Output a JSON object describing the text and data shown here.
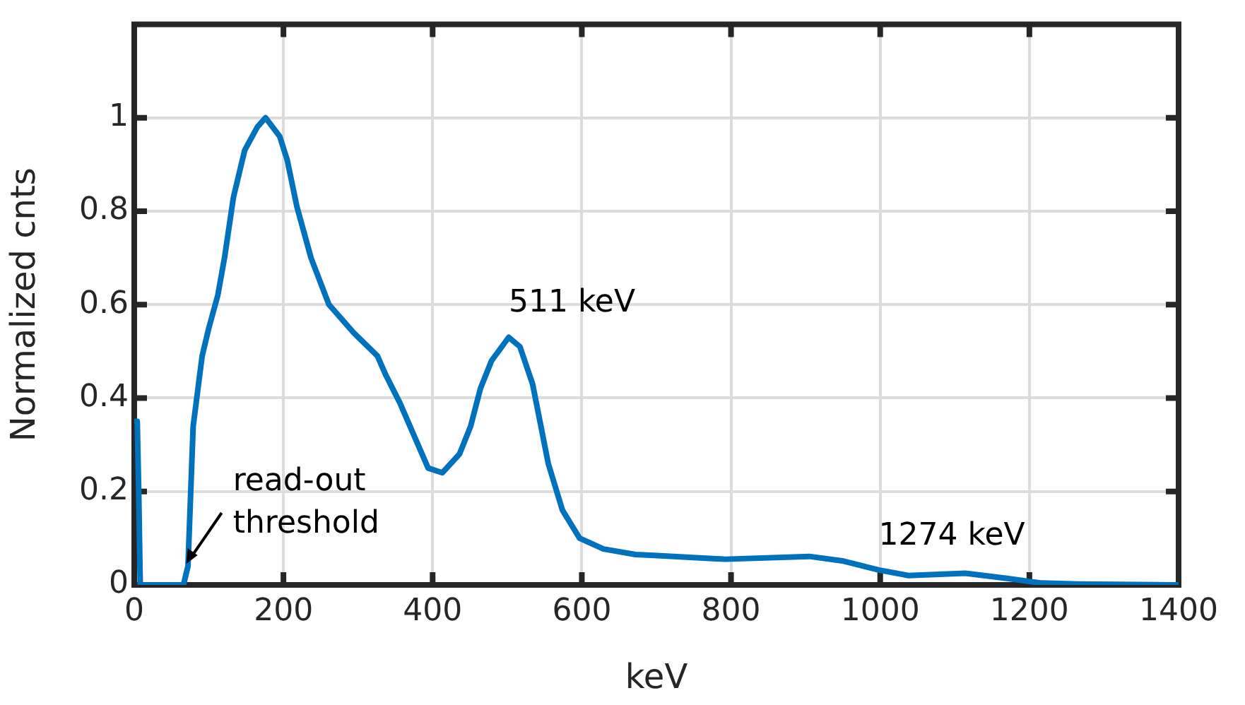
{
  "chart_data": {
    "type": "line",
    "xlabel": "keV",
    "ylabel": "Normalized cnts",
    "xlim": [
      0,
      1400
    ],
    "xticks": [
      0,
      200,
      400,
      600,
      800,
      1000,
      1200,
      1400
    ],
    "ylim": [
      0,
      1.2
    ],
    "yticks": [
      0,
      0.2,
      0.4,
      0.6,
      0.8,
      1
    ],
    "grid": true,
    "legend": false,
    "marker": "none",
    "line_style": "solid",
    "annotations": [
      {
        "text": "511 keV",
        "x": 502,
        "y": 0.53
      },
      {
        "text": "1274 keV",
        "x": 998,
        "y": 0.032
      },
      {
        "text": "read-out threshold",
        "x": 66,
        "y": 0
      }
    ],
    "series": [
      {
        "color": "#0072bd",
        "x": [
          2,
          4,
          6,
          8,
          30,
          66,
          72,
          79,
          91,
          100,
          112,
          121,
          133,
          148,
          165,
          176,
          195,
          205,
          218,
          237,
          261,
          294,
          326,
          337,
          356,
          375,
          394,
          413,
          436,
          451,
          464,
          479,
          502,
          517,
          534,
          555,
          574,
          597,
          629,
          672,
          697,
          792,
          905,
          951,
          998,
          1038,
          1114,
          1170,
          1216,
          1265,
          1398
        ],
        "values": [
          0.35,
          0.35,
          0.2,
          0,
          0,
          0,
          0.04,
          0.34,
          0.49,
          0.55,
          0.62,
          0.7,
          0.83,
          0.93,
          0.98,
          1,
          0.96,
          0.91,
          0.81,
          0.7,
          0.6,
          0.54,
          0.49,
          0.45,
          0.39,
          0.32,
          0.25,
          0.24,
          0.28,
          0.34,
          0.42,
          0.48,
          0.53,
          0.51,
          0.43,
          0.26,
          0.16,
          0.1,
          0.077,
          0.065,
          0.063,
          0.055,
          0.061,
          0.051,
          0.032,
          0.02,
          0.025,
          0.014,
          0.004,
          0.002,
          0
        ]
      }
    ]
  }
}
